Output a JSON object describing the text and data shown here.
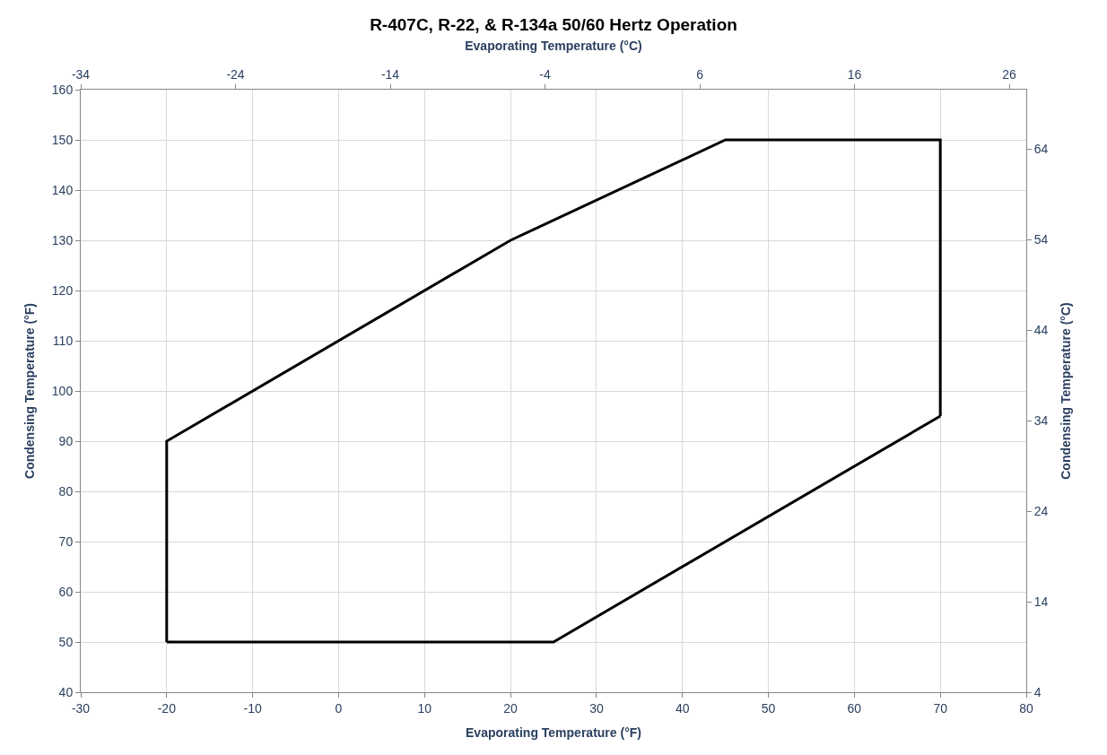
{
  "chart_data": {
    "type": "line",
    "title": "R-407C, R-22, & R-134a 50/60 Hertz Operation",
    "xlabel": "Evaporating Temperature (°F)",
    "ylabel": "Condensing Temperature (°F)",
    "x2label": "Evaporating Temperature (°C)",
    "y2label": "Condensing Temperature (°C)",
    "series": [
      {
        "color": "#000000",
        "x": [
          -20,
          -20,
          20,
          45,
          70,
          70
        ],
        "values": [
          50,
          90,
          130,
          150,
          150,
          95
        ]
      },
      {
        "color": "#000000",
        "x": [
          70,
          25,
          -20
        ],
        "values": [
          95,
          50,
          50
        ]
      }
    ],
    "xlim": [
      -30,
      80
    ],
    "xticks": [
      -30,
      -20,
      -10,
      0,
      10,
      20,
      30,
      40,
      50,
      60,
      70,
      80
    ],
    "ylim": [
      40,
      160
    ],
    "yticks": [
      40,
      50,
      60,
      70,
      80,
      90,
      100,
      110,
      120,
      130,
      140,
      150,
      160
    ],
    "x2lim": [
      -34,
      27.1
    ],
    "x2ticks": [
      -34,
      -24,
      -14,
      -4,
      6,
      16,
      26
    ],
    "y2lim": [
      4,
      70.6
    ],
    "y2ticks": [
      4,
      14,
      24,
      34,
      44,
      54,
      64
    ],
    "grid": true,
    "marker": "none",
    "line_style": "solid"
  }
}
